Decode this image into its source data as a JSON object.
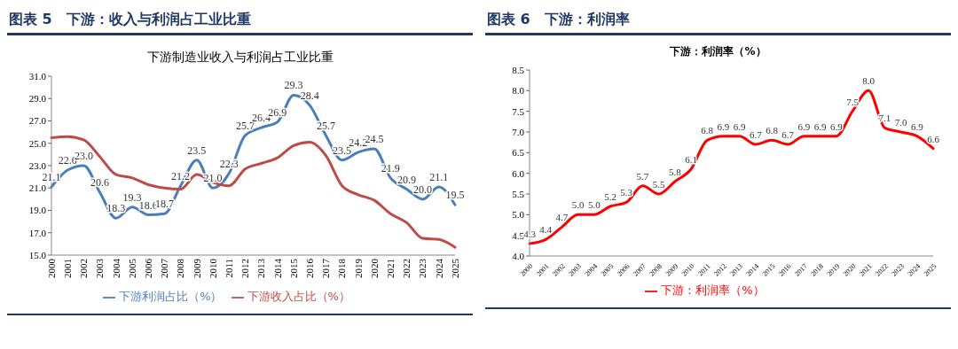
{
  "chart_data": [
    {
      "type": "line",
      "title": "图表 5　下游：收入与利润占工业比重",
      "subtitle": "下游制造业收入与利润占工业比重",
      "categories": [
        "2000",
        "2001",
        "2002",
        "2003",
        "2004",
        "2005",
        "2006",
        "2007",
        "2008",
        "2009",
        "2010",
        "2011",
        "2012",
        "2013",
        "2014",
        "2015",
        "2016",
        "2017",
        "2018",
        "2019",
        "2020",
        "2021",
        "2022",
        "2023",
        "2024",
        "2025"
      ],
      "series": [
        {
          "name": "下游利润占比（%）",
          "color": "#4a7ebb",
          "values": [
            21.1,
            22.6,
            23.0,
            20.6,
            18.3,
            19.3,
            18.6,
            18.7,
            21.2,
            23.5,
            21.0,
            22.3,
            25.7,
            26.4,
            26.9,
            29.3,
            28.4,
            25.7,
            23.5,
            24.2,
            24.5,
            21.9,
            20.9,
            20.0,
            21.1,
            19.5
          ],
          "value_labels": [
            "21.1",
            "22.6",
            "23.0",
            "20.6",
            "18.3",
            "19.3",
            "18.6",
            "18.7",
            "21.2",
            "23.5",
            "21.0",
            "22.3",
            "25.7",
            "26.4",
            "26.9",
            "29.3",
            "28.4",
            "25.7",
            "23.5",
            "24.2",
            "24.5",
            "21.9",
            "20.9",
            "20.0",
            "21.1",
            "19.5"
          ]
        },
        {
          "name": "下游收入占比（%）",
          "color": "#be4b48",
          "values": [
            25.5,
            25.6,
            25.3,
            23.8,
            22.2,
            21.9,
            21.3,
            21.0,
            20.9,
            22.2,
            21.5,
            21.2,
            22.7,
            23.2,
            23.7,
            24.8,
            25.1,
            23.9,
            21.2,
            20.4,
            19.9,
            18.7,
            17.9,
            16.5,
            16.4,
            15.7
          ]
        }
      ],
      "ylim": [
        15,
        31
      ],
      "yticks": [
        {
          "value": 15,
          "label": "15.0"
        },
        {
          "value": 17,
          "label": "17.0"
        },
        {
          "value": 19,
          "label": "19.0"
        },
        {
          "value": 21,
          "label": "21.0"
        },
        {
          "value": 23,
          "label": "23.0"
        },
        {
          "value": 25,
          "label": "25.0"
        },
        {
          "value": 27,
          "label": "27.0"
        },
        {
          "value": 29,
          "label": "29.0"
        },
        {
          "value": 31,
          "label": "31.0"
        }
      ],
      "grid": false,
      "legend": "bottom",
      "marker": "none"
    },
    {
      "type": "line",
      "title": "图表 6　下游：利润率",
      "subtitle": "下游：利润率（%）",
      "categories": [
        "2000",
        "2001",
        "2002",
        "2003",
        "2004",
        "2005",
        "2006",
        "2007",
        "2008",
        "2009",
        "2010",
        "2011",
        "2012",
        "2013",
        "2014",
        "2015",
        "2016",
        "2017",
        "2018",
        "2019",
        "2020",
        "2021",
        "2022",
        "2023",
        "2024",
        "2025"
      ],
      "series": [
        {
          "name": "下游：利润率（%）",
          "color": "#ff0000",
          "values": [
            4.3,
            4.4,
            4.7,
            5.0,
            5.0,
            5.2,
            5.3,
            5.7,
            5.5,
            5.8,
            6.1,
            6.8,
            6.9,
            6.9,
            6.7,
            6.8,
            6.7,
            6.9,
            6.9,
            6.9,
            7.5,
            8.0,
            7.1,
            7.0,
            6.9,
            6.6
          ],
          "value_labels": [
            "4.3",
            "4.4",
            "4.7",
            "5.0",
            "5.0",
            "5.2",
            "5.3",
            "5.7",
            "5.5",
            "5.8",
            "6.1",
            "6.8",
            "6.9",
            "6.9",
            "6.7",
            "6.8",
            "6.7",
            "6.9",
            "6.9",
            "6.9",
            "7.5",
            "8.0",
            "7.1",
            "7.0",
            "6.9",
            "6.6"
          ]
        }
      ],
      "ylim": [
        4,
        8.5
      ],
      "yticks": [
        {
          "value": 4,
          "label": "4.0"
        },
        {
          "value": 4.5,
          "label": "4.5"
        },
        {
          "value": 5,
          "label": "5.0"
        },
        {
          "value": 5.5,
          "label": "5.5"
        },
        {
          "value": 6,
          "label": "6.0"
        },
        {
          "value": 6.5,
          "label": "6.5"
        },
        {
          "value": 7,
          "label": "7.0"
        },
        {
          "value": 7.5,
          "label": "7.5"
        },
        {
          "value": 8,
          "label": "8.0"
        },
        {
          "value": 8.5,
          "label": "8.5"
        }
      ],
      "grid": false,
      "legend": "bottom",
      "marker": "none"
    }
  ]
}
